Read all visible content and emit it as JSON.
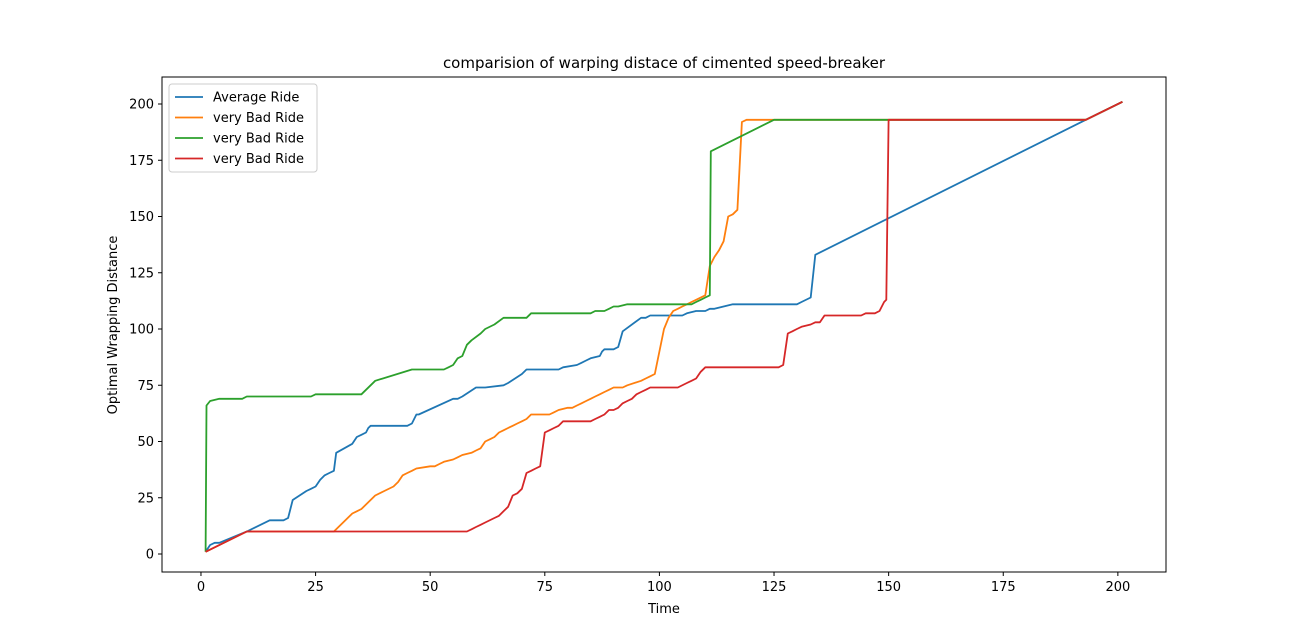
{
  "chart_data": {
    "type": "line",
    "title": "comparision of warping distace of cimented speed-breaker",
    "xlabel": "Time",
    "ylabel": "Optimal Wrapping Distance",
    "xlim": [
      -8.5,
      210.5
    ],
    "ylim": [
      -8,
      212
    ],
    "xticks": [
      0,
      25,
      50,
      75,
      100,
      125,
      150,
      175,
      200
    ],
    "yticks": [
      0,
      25,
      50,
      75,
      100,
      125,
      150,
      175,
      200
    ],
    "grid": false,
    "legend_position": "upper-left",
    "series": [
      {
        "name": "Average Ride",
        "color": "#1f77b4",
        "x": [
          1,
          2,
          3,
          4,
          10,
          15,
          18,
          19,
          20,
          23,
          24,
          25,
          26,
          27,
          28,
          29,
          29.5,
          33,
          34,
          35,
          36,
          36.5,
          37,
          45,
          46,
          47,
          47.5,
          55,
          56,
          57,
          60,
          62,
          66,
          67,
          70,
          71,
          72,
          78,
          79,
          82,
          83,
          84,
          85,
          87,
          87.5,
          88,
          90,
          91,
          92,
          96,
          97,
          98,
          105,
          106,
          108,
          110,
          111,
          112,
          114,
          116,
          119,
          120,
          130,
          131,
          133,
          134,
          193,
          201
        ],
        "y": [
          1,
          4,
          5,
          5,
          10,
          15,
          15,
          16,
          24,
          28,
          29,
          30,
          33,
          35,
          36,
          37,
          45,
          49,
          52,
          53,
          54,
          56,
          57,
          57,
          58,
          62,
          62,
          69,
          69,
          70,
          74,
          74,
          75,
          76,
          80,
          82,
          82,
          82,
          83,
          84,
          85,
          86,
          87,
          88,
          90,
          91,
          91,
          92,
          99,
          105,
          105,
          106,
          106,
          107,
          108,
          108,
          109,
          109,
          110,
          111,
          111,
          111,
          111,
          112,
          114,
          133,
          193,
          201
        ]
      },
      {
        "name": "very Bad Ride",
        "color": "#ff7f0e",
        "x": [
          1,
          10,
          29,
          30,
          31,
          32,
          33,
          34,
          35,
          36,
          37,
          38,
          40,
          42,
          43,
          44,
          45,
          46,
          47,
          50,
          51,
          52,
          53,
          55,
          56,
          57,
          59,
          60,
          61,
          62,
          63,
          64,
          65,
          66,
          67,
          68,
          69,
          70,
          71,
          72,
          75,
          76,
          77,
          78,
          80,
          81,
          82,
          83,
          84,
          85,
          86,
          87,
          88,
          89,
          90,
          91,
          92,
          93,
          96,
          97,
          98,
          99,
          100,
          101,
          102,
          103,
          104,
          105,
          106,
          107,
          108,
          110,
          111,
          112,
          113,
          114,
          115,
          116,
          117,
          118,
          119,
          121,
          193,
          201
        ],
        "y": [
          1,
          10,
          10,
          12,
          14,
          16,
          18,
          19,
          20,
          22,
          24,
          26,
          28,
          30,
          32,
          35,
          36,
          37,
          38,
          39,
          39,
          40,
          41,
          42,
          43,
          44,
          45,
          46,
          47,
          50,
          51,
          52,
          54,
          55,
          56,
          57,
          58,
          59,
          60,
          62,
          62,
          62,
          63,
          64,
          65,
          65,
          66,
          67,
          68,
          69,
          70,
          71,
          72,
          73,
          74,
          74,
          74,
          75,
          77,
          78,
          79,
          80,
          90,
          100,
          105,
          108,
          109,
          110,
          111,
          112,
          113,
          115,
          128,
          132,
          135,
          139,
          150,
          151,
          153,
          192,
          193,
          193,
          193,
          201
        ]
      },
      {
        "name": "very Bad Ride",
        "color": "#2ca02c",
        "x": [
          1,
          1.2,
          2,
          4,
          9,
          10,
          24,
          25,
          26,
          35,
          36,
          37,
          38,
          46,
          53,
          54,
          55,
          56,
          57,
          58,
          59,
          61,
          62,
          64,
          66,
          71,
          72,
          85,
          86,
          88,
          89,
          90,
          91,
          93,
          107,
          108,
          109,
          110,
          111,
          111.2,
          125,
          193,
          201
        ],
        "y": [
          1,
          66,
          68,
          69,
          69,
          70,
          70,
          71,
          71,
          71,
          73,
          75,
          77,
          82,
          82,
          83,
          84,
          87,
          88,
          93,
          95,
          98,
          100,
          102,
          105,
          105,
          107,
          107,
          108,
          108,
          109,
          110,
          110,
          111,
          111,
          112,
          113,
          114,
          115,
          179,
          193,
          193,
          201
        ]
      },
      {
        "name": "very Bad Ride",
        "color": "#d62728",
        "x": [
          1,
          10,
          58,
          59,
          60,
          61,
          62,
          64,
          65,
          66,
          67,
          68,
          69,
          70,
          71,
          72,
          73,
          74,
          75,
          76,
          77,
          78,
          79,
          85,
          86,
          87,
          88,
          89,
          90,
          91,
          92,
          93,
          94,
          95,
          96,
          97,
          98,
          104,
          106,
          107,
          108,
          109,
          110,
          120,
          126,
          127,
          128,
          129,
          130,
          131,
          133,
          134,
          135,
          136,
          144,
          145,
          147,
          148,
          149,
          149.5,
          150,
          193,
          201
        ],
        "y": [
          1,
          10,
          10,
          11,
          12,
          13,
          14,
          16,
          17,
          19,
          21,
          26,
          27,
          29,
          36,
          37,
          38,
          39,
          54,
          55,
          56,
          57,
          59,
          59,
          60,
          61,
          62,
          64,
          64,
          65,
          67,
          68,
          69,
          71,
          72,
          73,
          74,
          74,
          76,
          77,
          78,
          81,
          83,
          83,
          83,
          84,
          98,
          99,
          100,
          101,
          102,
          103,
          103,
          106,
          106,
          107,
          107,
          108,
          112,
          113,
          193,
          193,
          201
        ]
      }
    ]
  }
}
